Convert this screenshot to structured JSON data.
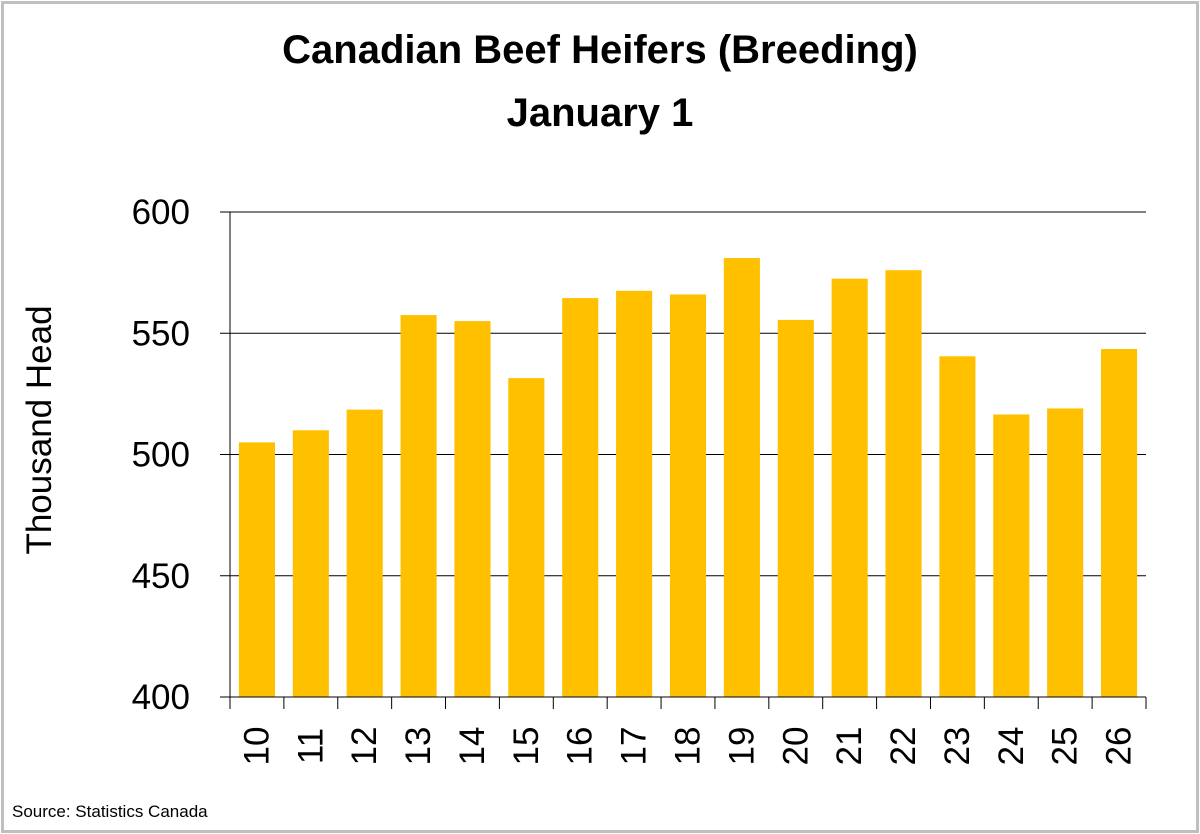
{
  "chart_data": {
    "type": "bar",
    "title": "Canadian Beef Heifers (Breeding)",
    "subtitle": "January 1",
    "xlabel": "",
    "ylabel": "Thousand Head",
    "categories": [
      "10",
      "11",
      "12",
      "13",
      "14",
      "15",
      "16",
      "17",
      "18",
      "19",
      "20",
      "21",
      "22",
      "23",
      "24",
      "25",
      "26"
    ],
    "values": [
      505,
      510,
      518.5,
      557.5,
      555,
      531.5,
      564.5,
      567.5,
      566,
      581,
      555.5,
      572.5,
      576,
      540.5,
      516.5,
      519,
      543.5
    ],
    "ylim": [
      400,
      600
    ],
    "yticks": [
      400,
      450,
      500,
      550,
      600
    ],
    "grid": true,
    "legend": "none",
    "bar_color": "#FFC000"
  },
  "source": "Source:  Statistics Canada"
}
